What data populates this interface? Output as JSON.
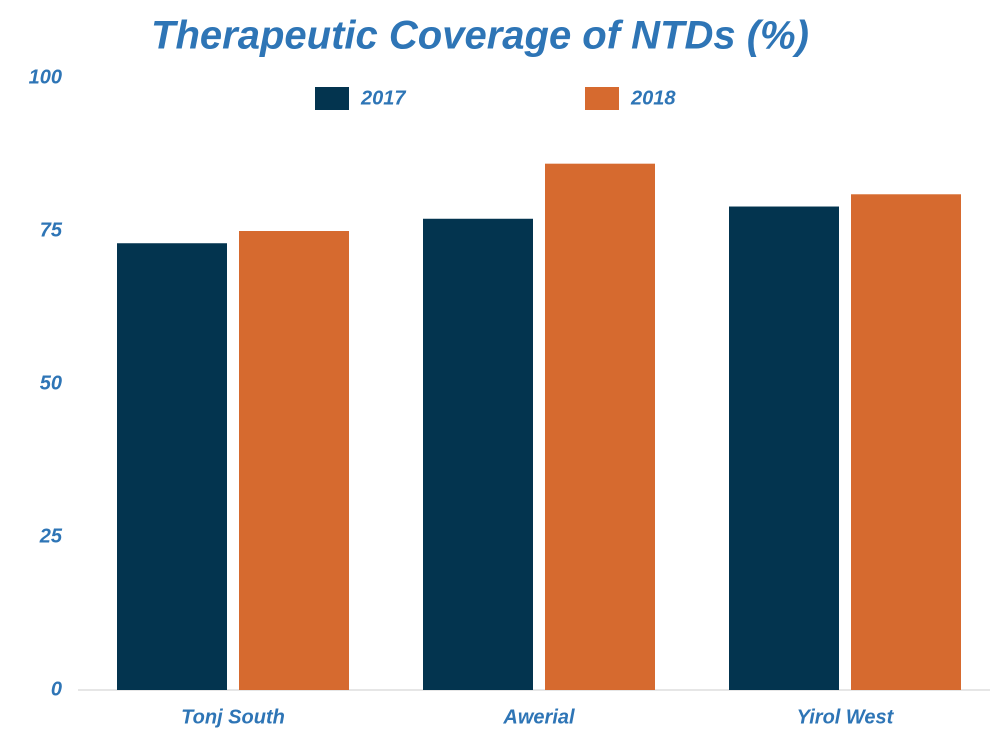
{
  "chart_data": {
    "type": "bar",
    "title": "Therapeutic  Coverage of NTDs (%)",
    "categories": [
      "Tonj South",
      "Awerial",
      "Yirol West"
    ],
    "series": [
      {
        "name": "2017",
        "color": "#03344f",
        "values": [
          73,
          77,
          79
        ]
      },
      {
        "name": "2018",
        "color": "#d66a2f",
        "values": [
          75,
          86,
          81
        ]
      }
    ],
    "ylim": [
      0,
      100
    ],
    "yticks": [
      0,
      25,
      50,
      75,
      100
    ],
    "grid": false,
    "legend": "top"
  }
}
